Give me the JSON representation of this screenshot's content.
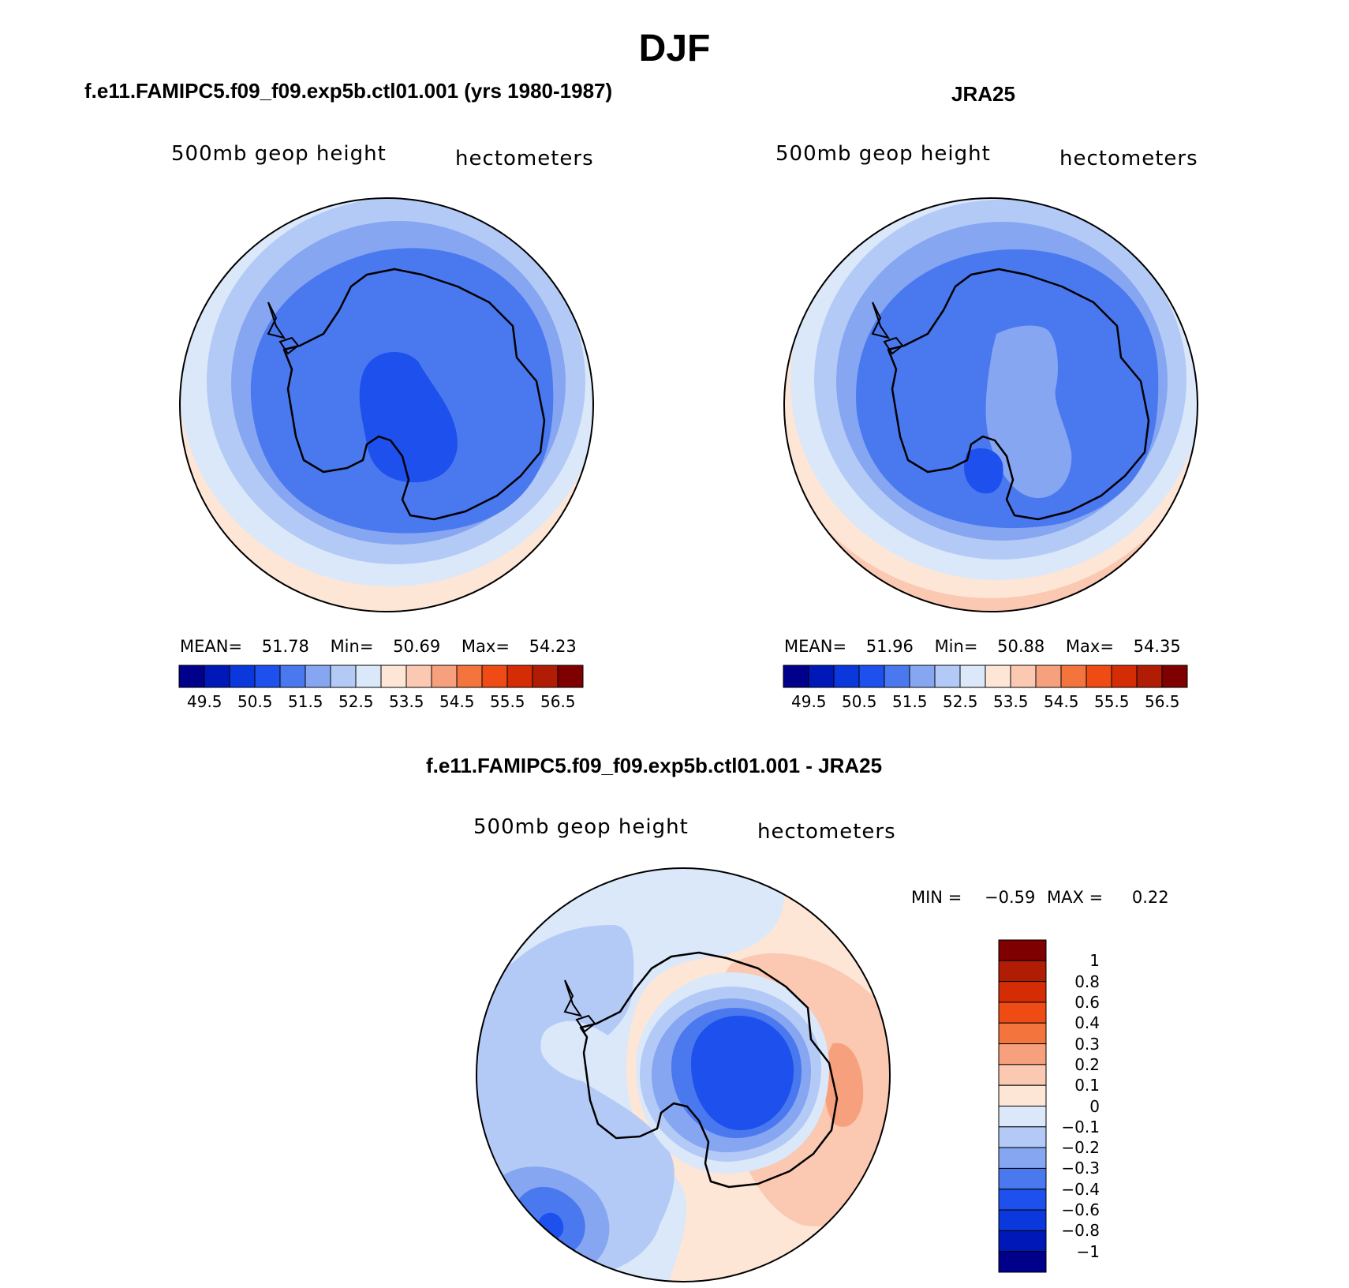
{
  "main_title": "DJF",
  "panels": [
    {
      "title": "f.e11.FAMIPC5.f09_f09.exp5b.ctl01.001 (yrs 1980-1987)",
      "variable": "500mb  geop  height",
      "units": "hectometers",
      "stats": {
        "mean_label": "MEAN=",
        "mean": "51.78",
        "min_label": "Min=",
        "min": "50.69",
        "max_label": "Max=",
        "max": "54.23"
      },
      "colorbar_ticks": [
        "49.5",
        "50.5",
        "51.5",
        "52.5",
        "53.5",
        "54.5",
        "55.5",
        "56.5"
      ]
    },
    {
      "title": "JRA25",
      "variable": "500mb  geop  height",
      "units": "hectometers",
      "stats": {
        "mean_label": "MEAN=",
        "mean": "51.96",
        "min_label": "Min=",
        "min": "50.88",
        "max_label": "Max=",
        "max": "54.35"
      },
      "colorbar_ticks": [
        "49.5",
        "50.5",
        "51.5",
        "52.5",
        "53.5",
        "54.5",
        "55.5",
        "56.5"
      ]
    },
    {
      "title": "f.e11.FAMIPC5.f09_f09.exp5b.ctl01.001 - JRA25",
      "variable": "500mb  geop  height",
      "units": "hectometers",
      "stats": {
        "min_label": "MIN =",
        "min": "−0.59",
        "max_label": "MAX =",
        "max": "0.22"
      },
      "colorbar_ticks": [
        "1",
        "0.8",
        "0.6",
        "0.4",
        "0.3",
        "0.2",
        "0.1",
        "0",
        "−0.1",
        "−0.2",
        "−0.3",
        "−0.4",
        "−0.6",
        "−0.8",
        "−1"
      ]
    }
  ],
  "colors": {
    "abs_levels": [
      "#00008b",
      "#0018b8",
      "#0a38dc",
      "#1e50ee",
      "#4a78ee",
      "#86a6f2",
      "#b4caf6",
      "#dae8fa",
      "#fde6d6",
      "#fbc8b2",
      "#f6a07e",
      "#f4743e",
      "#ee4c14",
      "#d42c04",
      "#b01c04",
      "#7e0000"
    ],
    "diff_levels": [
      "#00008b",
      "#0018b8",
      "#0a38dc",
      "#1e50ee",
      "#4a78ee",
      "#86a6f2",
      "#b4caf6",
      "#dae8fa",
      "#fde6d6",
      "#fbc8b2",
      "#f6a07e",
      "#f4743e",
      "#ee4c14",
      "#d42c04",
      "#b01c04",
      "#7e0000"
    ]
  },
  "chart_data": [
    {
      "type": "heatmap",
      "title": "f.e11.FAMIPC5.f09_f09.exp5b.ctl01.001 (yrs 1980-1987)",
      "projection": "south polar stereographic",
      "variable": "500mb geop height",
      "units": "hectometers",
      "levels": [
        49.5,
        50,
        50.5,
        51,
        51.5,
        52,
        52.5,
        53,
        53.5,
        54,
        54.5,
        55,
        55.5,
        56,
        56.5
      ],
      "mean": 51.78,
      "min": 50.69,
      "max": 54.23
    },
    {
      "type": "heatmap",
      "title": "JRA25",
      "projection": "south polar stereographic",
      "variable": "500mb geop height",
      "units": "hectometers",
      "levels": [
        49.5,
        50,
        50.5,
        51,
        51.5,
        52,
        52.5,
        53,
        53.5,
        54,
        54.5,
        55,
        55.5,
        56,
        56.5
      ],
      "mean": 51.96,
      "min": 50.88,
      "max": 54.35
    },
    {
      "type": "heatmap",
      "title": "f.e11.FAMIPC5.f09_f09.exp5b.ctl01.001 - JRA25",
      "projection": "south polar stereographic",
      "variable": "500mb geop height",
      "units": "hectometers",
      "levels": [
        -1,
        -0.8,
        -0.6,
        -0.4,
        -0.3,
        -0.2,
        -0.1,
        0,
        0.1,
        0.2,
        0.3,
        0.4,
        0.6,
        0.8,
        1
      ],
      "min": -0.59,
      "max": 0.22
    }
  ]
}
